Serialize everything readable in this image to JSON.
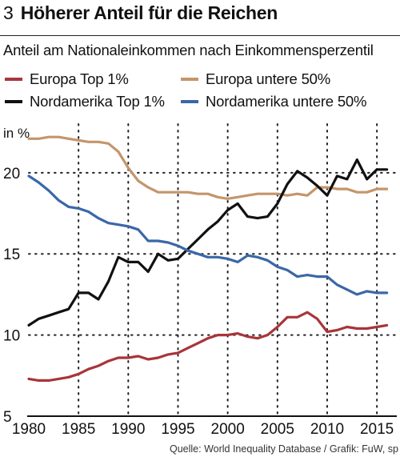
{
  "header": {
    "figure_number": "3",
    "title": "Höherer Anteil für die Reichen",
    "subtitle": "Anteil am Nationaleinkommen nach Einkommensperzentil"
  },
  "legend": [
    {
      "label": "Europa Top 1%",
      "color": "#a8353a"
    },
    {
      "label": "Europa untere 50%",
      "color": "#c4956b"
    },
    {
      "label": "Nordamerika Top 1%",
      "color": "#111111"
    },
    {
      "label": "Nordamerika untere 50%",
      "color": "#3a67a8"
    }
  ],
  "source": "Quelle: World Inequality Database / Grafik: FuW, sp",
  "chart_data": {
    "type": "line",
    "ylabel": "in %",
    "ylim": [
      5,
      23
    ],
    "xlim": [
      1980,
      2017
    ],
    "yticks": [
      5,
      10,
      15,
      20
    ],
    "xticks": [
      1980,
      1985,
      1990,
      1995,
      2000,
      2005,
      2010,
      2015
    ],
    "grid": "dotted",
    "x": [
      1980,
      1981,
      1982,
      1983,
      1984,
      1985,
      1986,
      1987,
      1988,
      1989,
      1990,
      1991,
      1992,
      1993,
      1994,
      1995,
      1996,
      1997,
      1998,
      1999,
      2000,
      2001,
      2002,
      2003,
      2004,
      2005,
      2006,
      2007,
      2008,
      2009,
      2010,
      2011,
      2012,
      2013,
      2014,
      2015,
      2016
    ],
    "series": [
      {
        "name": "Europa Top 1%",
        "color": "#a8353a",
        "values": [
          7.3,
          7.2,
          7.2,
          7.3,
          7.4,
          7.6,
          7.9,
          8.1,
          8.4,
          8.6,
          8.6,
          8.7,
          8.5,
          8.6,
          8.8,
          8.9,
          9.2,
          9.5,
          9.8,
          10.0,
          10.0,
          10.1,
          9.9,
          9.8,
          10.0,
          10.5,
          11.1,
          11.1,
          11.4,
          11.0,
          10.2,
          10.3,
          10.5,
          10.4,
          10.4,
          10.5,
          10.6
        ]
      },
      {
        "name": "Europa untere 50%",
        "color": "#c4956b",
        "values": [
          22.1,
          22.1,
          22.2,
          22.2,
          22.1,
          22.0,
          21.9,
          21.9,
          21.8,
          21.3,
          20.3,
          19.5,
          19.1,
          18.8,
          18.8,
          18.8,
          18.8,
          18.7,
          18.7,
          18.5,
          18.4,
          18.5,
          18.6,
          18.7,
          18.7,
          18.7,
          18.6,
          18.7,
          18.6,
          19.1,
          19.1,
          19.0,
          19.0,
          18.8,
          18.8,
          19.0,
          19.0
        ]
      },
      {
        "name": "Nordamerika Top 1%",
        "color": "#111111",
        "values": [
          10.6,
          11.0,
          11.2,
          11.4,
          11.6,
          12.6,
          12.6,
          12.2,
          13.3,
          14.8,
          14.5,
          14.5,
          13.9,
          15.0,
          14.6,
          14.7,
          15.3,
          15.9,
          16.5,
          17.0,
          17.7,
          18.1,
          17.3,
          17.2,
          17.3,
          18.1,
          19.3,
          20.1,
          19.7,
          19.2,
          18.6,
          19.8,
          19.6,
          20.8,
          19.6,
          20.2,
          20.2
        ]
      },
      {
        "name": "Nordamerika untere 50%",
        "color": "#3a67a8",
        "values": [
          19.8,
          19.4,
          18.9,
          18.3,
          17.9,
          17.8,
          17.6,
          17.2,
          16.9,
          16.8,
          16.7,
          16.5,
          15.8,
          15.8,
          15.7,
          15.5,
          15.2,
          15.0,
          14.8,
          14.8,
          14.7,
          14.5,
          14.9,
          14.8,
          14.6,
          14.2,
          14.0,
          13.6,
          13.7,
          13.6,
          13.6,
          13.1,
          12.8,
          12.5,
          12.7,
          12.6,
          12.6
        ]
      }
    ]
  }
}
